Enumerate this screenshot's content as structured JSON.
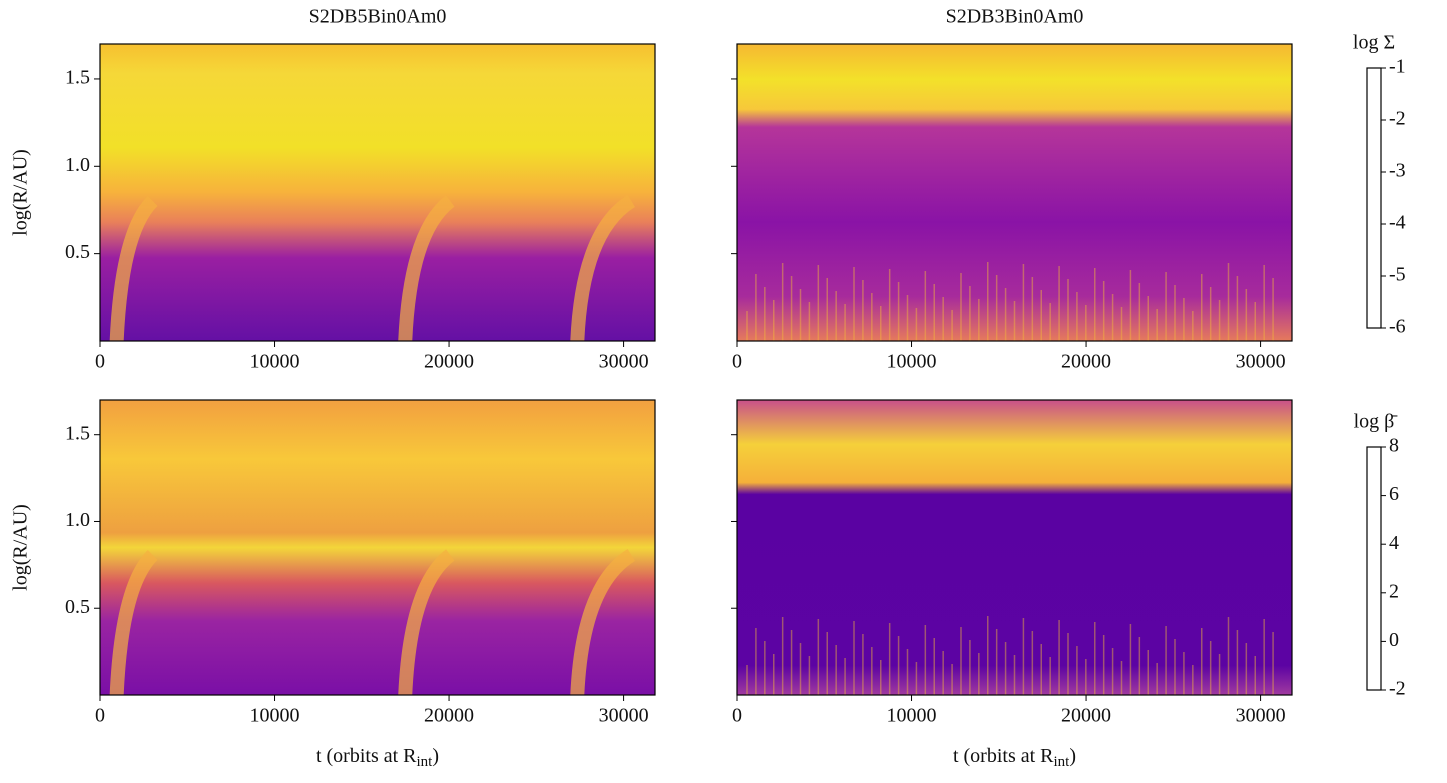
{
  "chart_data": [
    {
      "type": "heatmap",
      "title": "S2DB5Bin0Am0",
      "ylabel": "log(R/AU)",
      "xlim": [
        0,
        31800
      ],
      "xticks": [
        0,
        10000,
        20000,
        30000
      ],
      "ylim": [
        0,
        1.7
      ],
      "yticks": [
        0.5,
        {
          "value": 1,
          "label": "1.0"
        },
        1.5
      ]
    },
    {
      "type": "heatmap",
      "title": "S2DB3Bin0Am0",
      "xlim": [
        0,
        31800
      ],
      "xticks": [
        0,
        10000,
        20000,
        30000
      ],
      "ylim": [
        0,
        1.7
      ],
      "yticks": [
        0.5,
        {
          "value": 1,
          "label": "1.0"
        },
        1.5
      ]
    },
    {
      "type": "heatmap",
      "ylabel": "log(R/AU)",
      "xlabel": {
        "text": "t (orbits at R",
        "sub": "int",
        "end": ")"
      },
      "xlim": [
        0,
        31800
      ],
      "xticks": [
        0,
        10000,
        20000,
        30000
      ],
      "ylim": [
        0,
        1.7
      ],
      "yticks": [
        0.5,
        {
          "value": 1,
          "label": "1.0"
        },
        1.5
      ]
    },
    {
      "type": "heatmap",
      "xlabel": {
        "text": "t (orbits at R",
        "sub": "int",
        "end": ")"
      },
      "xlim": [
        0,
        31800
      ],
      "xticks": [
        0,
        10000,
        20000,
        30000
      ],
      "ylim": [
        0,
        1.7
      ],
      "yticks": [
        0.5,
        {
          "value": 1,
          "label": "1.0"
        },
        1.5
      ]
    }
  ],
  "colorbars": [
    {
      "label": "log Σ",
      "clim": [
        -6,
        -1
      ],
      "ticks": [
        -6,
        -5,
        -4,
        -3,
        -2,
        -1
      ]
    },
    {
      "label": "log β̄",
      "clim": [
        -2,
        8
      ],
      "ticks": [
        -2,
        0,
        2,
        4,
        6,
        8
      ]
    }
  ]
}
